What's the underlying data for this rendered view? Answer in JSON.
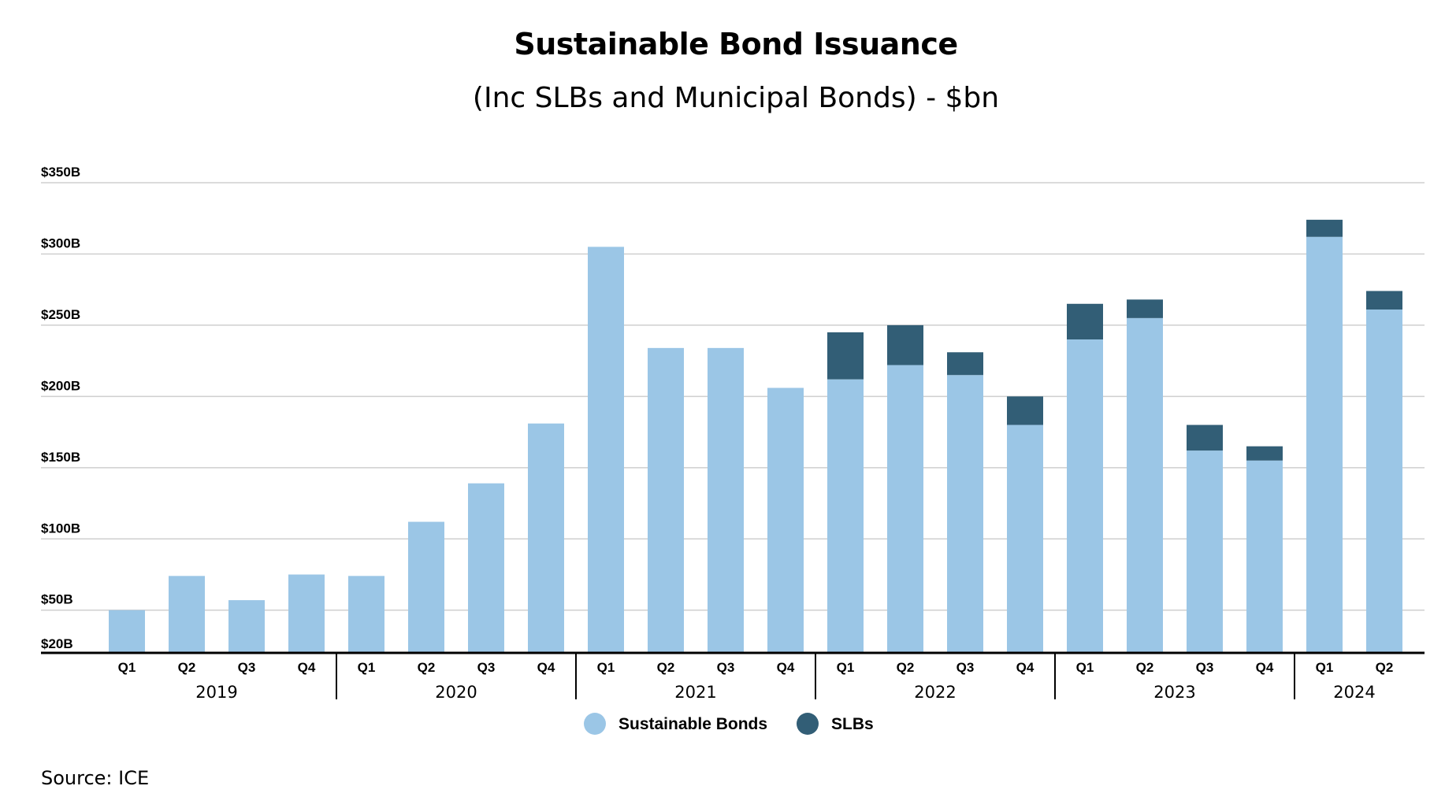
{
  "chart_data": {
    "type": "bar",
    "stacked": true,
    "title": "Sustainable Bond Issuance",
    "subtitle": "(Inc SLBs and Municipal Bonds) - $bn",
    "xlabel": "",
    "ylabel": "",
    "ylim": [
      20,
      350
    ],
    "yticks": [
      {
        "value": 20,
        "label": "$20B"
      },
      {
        "value": 50,
        "label": "$50B"
      },
      {
        "value": 100,
        "label": "$100B"
      },
      {
        "value": 150,
        "label": "$150B"
      },
      {
        "value": 200,
        "label": "$200B"
      },
      {
        "value": 250,
        "label": "$250B"
      },
      {
        "value": 300,
        "label": "$300B"
      },
      {
        "value": 350,
        "label": "$350B"
      }
    ],
    "grid": true,
    "legend_position": "bottom-center",
    "categories": [
      "Q1",
      "Q2",
      "Q3",
      "Q4",
      "Q1",
      "Q2",
      "Q3",
      "Q4",
      "Q1",
      "Q2",
      "Q3",
      "Q4",
      "Q1",
      "Q2",
      "Q3",
      "Q4",
      "Q1",
      "Q2",
      "Q3",
      "Q4",
      "Q1",
      "Q2"
    ],
    "groups": [
      {
        "label": "2019",
        "count": 4
      },
      {
        "label": "2020",
        "count": 4
      },
      {
        "label": "2021",
        "count": 4
      },
      {
        "label": "2022",
        "count": 4
      },
      {
        "label": "2023",
        "count": 4
      },
      {
        "label": "2024",
        "count": 2
      }
    ],
    "series": [
      {
        "name": "Sustainable Bonds",
        "color": "#9bc6e6",
        "values": [
          50,
          74,
          57,
          75,
          74,
          112,
          139,
          181,
          305,
          234,
          234,
          206,
          212,
          222,
          215,
          180,
          240,
          255,
          162,
          155,
          312,
          261
        ]
      },
      {
        "name": "SLBs",
        "color": "#325e76",
        "values": [
          0,
          0,
          0,
          0,
          0,
          0,
          0,
          0,
          0,
          0,
          0,
          0,
          33,
          28,
          16,
          20,
          25,
          13,
          18,
          10,
          12,
          13
        ]
      }
    ]
  },
  "source": "Source: ICE"
}
